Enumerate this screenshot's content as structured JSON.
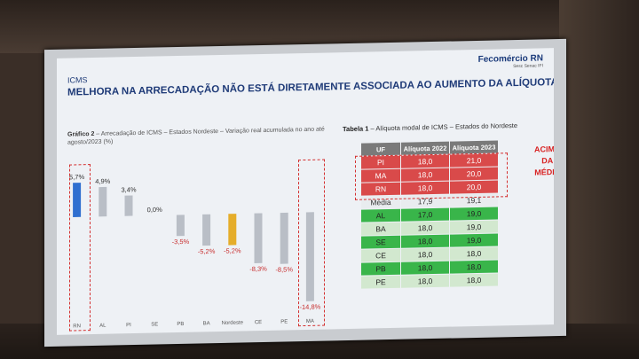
{
  "header": {
    "section": "ICMS",
    "title": "MELHORA NA ARRECADAÇÃO NÃO ESTÁ DIRETAMENTE ASSOCIADA AO AUMENTO DA ALÍQUOTA",
    "logo_text": "Fecomércio RN",
    "logo_sub": "Sesc Senac IFI"
  },
  "chart_caption": {
    "label": "Gráfico 2",
    "text": " – Arrecadação de ICMS – Estados Nordeste – Variação real acumulada no ano até agosto/2023 (%)"
  },
  "chart_data": {
    "type": "bar",
    "categories": [
      "RN",
      "AL",
      "PI",
      "SE",
      "PB",
      "BA",
      "Nordeste",
      "CE",
      "PE",
      "MA"
    ],
    "values": [
      5.7,
      4.9,
      3.4,
      0.0,
      -3.5,
      -5.2,
      -5.2,
      -8.3,
      -8.5,
      -14.8
    ],
    "value_labels": [
      "5,7%",
      "4,9%",
      "3,4%",
      "0,0%",
      "-3,5%",
      "-5,2%",
      "-5,2%",
      "-8,3%",
      "-8,5%",
      "-14,8%"
    ],
    "ylim": [
      -16,
      7
    ],
    "colors": {
      "positive_highlight": "#2f6fd0",
      "nordeste": "#e5ad2a",
      "default": "#b9bec6",
      "neg_label": "#c83030"
    }
  },
  "table_caption": {
    "label": "Tabela 1",
    "text": " – Alíquota modal de ICMS – Estados do Nordeste"
  },
  "table": {
    "headers": [
      "UF",
      "Alíquota 2022",
      "Alíquota 2023"
    ],
    "above": [
      {
        "uf": "PI",
        "a2022": "18,0",
        "a2023": "21,0"
      },
      {
        "uf": "MA",
        "a2022": "18,0",
        "a2023": "20,0"
      },
      {
        "uf": "RN",
        "a2022": "18,0",
        "a2023": "20,0"
      }
    ],
    "media": {
      "uf": "Média",
      "a2022": "17,9",
      "a2023": "19,1"
    },
    "rest": [
      {
        "uf": "AL",
        "a2022": "17,0",
        "a2023": "19,0"
      },
      {
        "uf": "BA",
        "a2022": "18,0",
        "a2023": "19,0"
      },
      {
        "uf": "SE",
        "a2022": "18,0",
        "a2023": "19,0"
      },
      {
        "uf": "CE",
        "a2022": "18,0",
        "a2023": "18,0"
      },
      {
        "uf": "PB",
        "a2022": "18,0",
        "a2023": "18,0"
      },
      {
        "uf": "PE",
        "a2022": "18,0",
        "a2023": "18,0"
      }
    ]
  },
  "annotation": [
    "ACIMA",
    "DA",
    "MÉDIA"
  ]
}
